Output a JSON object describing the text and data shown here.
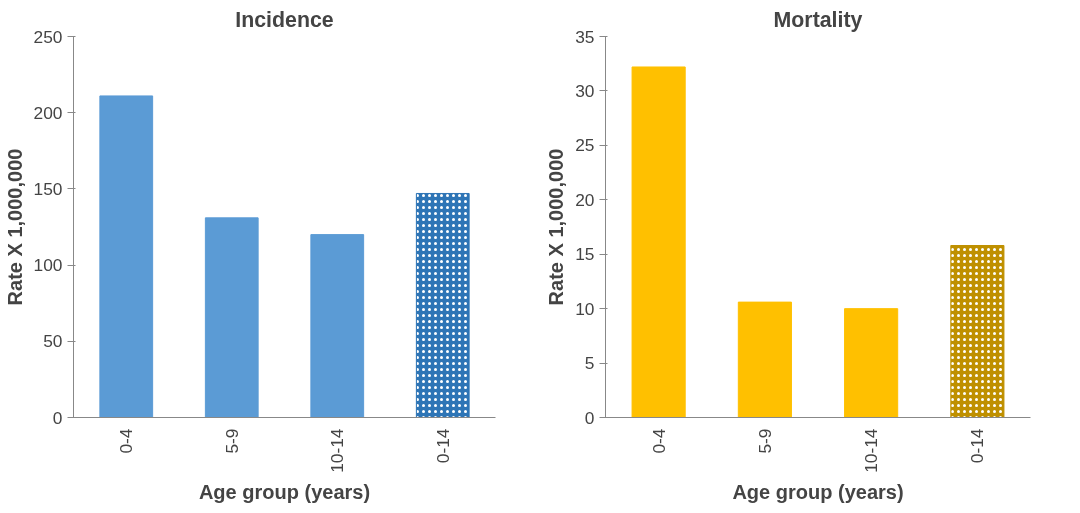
{
  "chart_data": [
    {
      "type": "bar",
      "title": "Incidence",
      "xlabel": "Age group (years)",
      "ylabel": "Rate X 1,000,000",
      "categories": [
        "0-4",
        "5-9",
        "10-14",
        "0-14"
      ],
      "values": [
        211,
        131,
        120,
        147
      ],
      "colors": [
        "#5b9bd5",
        "#5b9bd5",
        "#5b9bd5",
        "#2e75b6"
      ],
      "ylim": [
        0,
        250
      ],
      "yticks": [
        0,
        50,
        100,
        150,
        200,
        250
      ],
      "grid": false
    },
    {
      "type": "bar",
      "title": "Mortality",
      "xlabel": "Age group (years)",
      "ylabel": "Rate X 1,000,000",
      "categories": [
        "0-4",
        "5-9",
        "10-14",
        "0-14"
      ],
      "values": [
        32.2,
        10.6,
        10.0,
        15.8
      ],
      "colors": [
        "#ffc000",
        "#ffc000",
        "#ffc000",
        "#bf9000"
      ],
      "ylim": [
        0,
        35
      ],
      "yticks": [
        0,
        5,
        10,
        15,
        20,
        25,
        30,
        35
      ],
      "grid": false
    }
  ]
}
